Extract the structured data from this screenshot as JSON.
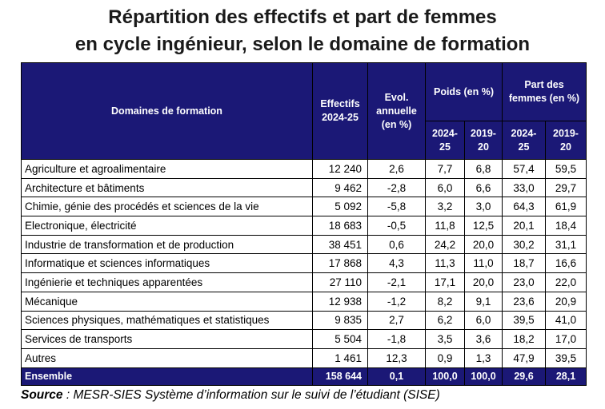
{
  "title_line1": "Répartition des effectifs et part de femmes",
  "title_line2": "en cycle ingénieur, selon le domaine de formation",
  "headers": {
    "domaines": "Domaines de formation",
    "effectifs_l1": "Effectifs",
    "effectifs_l2": "2024-25",
    "evol_l1": "Evol.",
    "evol_l2": "annuelle",
    "evol_l3": "(en %)",
    "poids": "Poids (en %)",
    "femmes_l1": "Part des",
    "femmes_l2": "femmes (en %)",
    "y1_l1": "2024-",
    "y1_l2": "25",
    "y2_l1": "2019-",
    "y2_l2": "20"
  },
  "rows": [
    {
      "domaine": "Agriculture et agroalimentaire",
      "effectifs": "12 240",
      "evol": "2,6",
      "poids_2024": "7,7",
      "poids_2019": "6,8",
      "femmes_2024": "57,4",
      "femmes_2019": "59,5"
    },
    {
      "domaine": "Architecture et bâtiments",
      "effectifs": "9 462",
      "evol": "-2,8",
      "poids_2024": "6,0",
      "poids_2019": "6,6",
      "femmes_2024": "33,0",
      "femmes_2019": "29,7"
    },
    {
      "domaine": "Chimie, génie des procédés et sciences de la vie",
      "effectifs": "5 092",
      "evol": "-5,8",
      "poids_2024": "3,2",
      "poids_2019": "3,0",
      "femmes_2024": "64,3",
      "femmes_2019": "61,9"
    },
    {
      "domaine": "Electronique, électricité",
      "effectifs": "18 683",
      "evol": "-0,5",
      "poids_2024": "11,8",
      "poids_2019": "12,5",
      "femmes_2024": "20,1",
      "femmes_2019": "18,4"
    },
    {
      "domaine": "Industrie de transformation et de production",
      "effectifs": "38 451",
      "evol": "0,6",
      "poids_2024": "24,2",
      "poids_2019": "20,0",
      "femmes_2024": "30,2",
      "femmes_2019": "31,1"
    },
    {
      "domaine": "Informatique et sciences informatiques",
      "effectifs": "17 868",
      "evol": "4,3",
      "poids_2024": "11,3",
      "poids_2019": "11,0",
      "femmes_2024": "18,7",
      "femmes_2019": "16,6"
    },
    {
      "domaine": "Ingénierie et techniques apparentées",
      "effectifs": "27 110",
      "evol": "-2,1",
      "poids_2024": "17,1",
      "poids_2019": "20,0",
      "femmes_2024": "23,0",
      "femmes_2019": "22,0"
    },
    {
      "domaine": "Mécanique",
      "effectifs": "12 938",
      "evol": "-1,2",
      "poids_2024": "8,2",
      "poids_2019": "9,1",
      "femmes_2024": "23,6",
      "femmes_2019": "20,9"
    },
    {
      "domaine": "Sciences physiques, mathématiques et statistiques",
      "effectifs": "9 835",
      "evol": "2,7",
      "poids_2024": "6,2",
      "poids_2019": "6,0",
      "femmes_2024": "39,5",
      "femmes_2019": "41,0"
    },
    {
      "domaine": "Services de transports",
      "effectifs": "5 504",
      "evol": "-1,8",
      "poids_2024": "3,5",
      "poids_2019": "3,6",
      "femmes_2024": "18,2",
      "femmes_2019": "17,0"
    },
    {
      "domaine": "Autres",
      "effectifs": "1 461",
      "evol": "12,3",
      "poids_2024": "0,9",
      "poids_2019": "1,3",
      "femmes_2024": "47,9",
      "femmes_2019": "39,5"
    }
  ],
  "total": {
    "domaine": "Ensemble",
    "effectifs": "158 644",
    "evol": "0,1",
    "poids_2024": "100,0",
    "poids_2019": "100,0",
    "femmes_2024": "29,6",
    "femmes_2019": "28,1"
  },
  "source_label": "Source",
  "source_text": " : MESR-SIES Système d’information sur le suivi de l’étudiant (SISE)",
  "colors": {
    "header_bg": "#1b1876",
    "header_text": "#ffffff"
  }
}
